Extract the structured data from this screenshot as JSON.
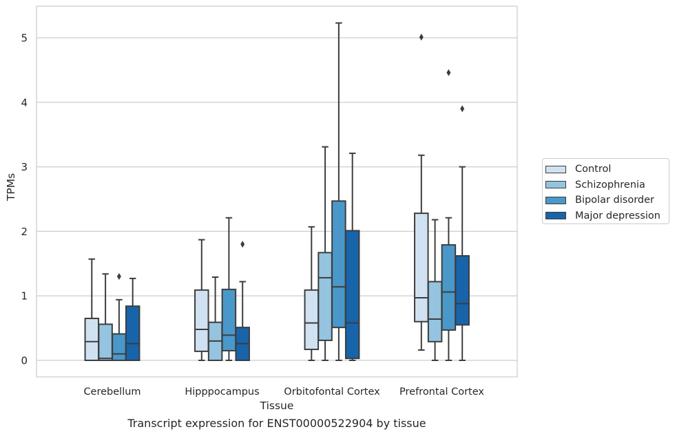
{
  "chart_data": {
    "type": "box",
    "title": "",
    "xlabel": "Tissue",
    "ylabel": "TPMs",
    "caption": "Transcript expression for ENST00000522904 by tissue",
    "categories": [
      "Cerebellum",
      "Hipppocampus",
      "Orbitofontal Cortex",
      "Prefrontal Cortex"
    ],
    "ylim": [
      -0.25,
      5.5
    ],
    "yticks": [
      0,
      1,
      2,
      3,
      4,
      5
    ],
    "grid": true,
    "legend_position": "right",
    "series": [
      {
        "name": "Control",
        "color": "#d0e1f2",
        "boxes": [
          {
            "min": 0,
            "q1": 0,
            "median": 0.29,
            "q3": 0.65,
            "max": 1.57,
            "outliers": []
          },
          {
            "min": 0,
            "q1": 0.14,
            "median": 0.48,
            "q3": 1.09,
            "max": 1.87,
            "outliers": []
          },
          {
            "min": 0,
            "q1": 0.17,
            "median": 0.58,
            "q3": 1.09,
            "max": 2.07,
            "outliers": []
          },
          {
            "min": 0.16,
            "q1": 0.6,
            "median": 0.97,
            "q3": 2.28,
            "max": 3.18,
            "outliers": [
              5.01
            ]
          }
        ]
      },
      {
        "name": "Schizophrenia",
        "color": "#94c4df",
        "boxes": [
          {
            "min": 0,
            "q1": 0,
            "median": 0.03,
            "q3": 0.56,
            "max": 1.34,
            "outliers": []
          },
          {
            "min": 0,
            "q1": 0,
            "median": 0.3,
            "q3": 0.59,
            "max": 1.29,
            "outliers": []
          },
          {
            "min": 0,
            "q1": 0.31,
            "median": 1.28,
            "q3": 1.67,
            "max": 3.31,
            "outliers": []
          },
          {
            "min": 0,
            "q1": 0.29,
            "median": 0.64,
            "q3": 1.22,
            "max": 2.18,
            "outliers": []
          }
        ]
      },
      {
        "name": "Bipolar disorder",
        "color": "#4a98c9",
        "boxes": [
          {
            "min": 0,
            "q1": 0,
            "median": 0.1,
            "q3": 0.41,
            "max": 0.94,
            "outliers": [
              1.3
            ]
          },
          {
            "min": 0,
            "q1": 0.15,
            "median": 0.39,
            "q3": 1.1,
            "max": 2.21,
            "outliers": []
          },
          {
            "min": 0,
            "q1": 0.51,
            "median": 1.14,
            "q3": 2.47,
            "max": 5.23,
            "outliers": []
          },
          {
            "min": 0,
            "q1": 0.47,
            "median": 1.06,
            "q3": 1.79,
            "max": 2.21,
            "outliers": [
              4.46
            ]
          }
        ]
      },
      {
        "name": "Major depression",
        "color": "#1764ab",
        "boxes": [
          {
            "min": 0,
            "q1": 0,
            "median": 0.26,
            "q3": 0.84,
            "max": 1.27,
            "outliers": []
          },
          {
            "min": 0,
            "q1": 0,
            "median": 0.26,
            "q3": 0.51,
            "max": 1.22,
            "outliers": [
              1.8
            ]
          },
          {
            "min": 0,
            "q1": 0.03,
            "median": 0.58,
            "q3": 2.01,
            "max": 3.21,
            "outliers": []
          },
          {
            "min": 0,
            "q1": 0.55,
            "median": 0.88,
            "q3": 1.62,
            "max": 3.0,
            "outliers": [
              3.9
            ]
          }
        ]
      }
    ]
  }
}
